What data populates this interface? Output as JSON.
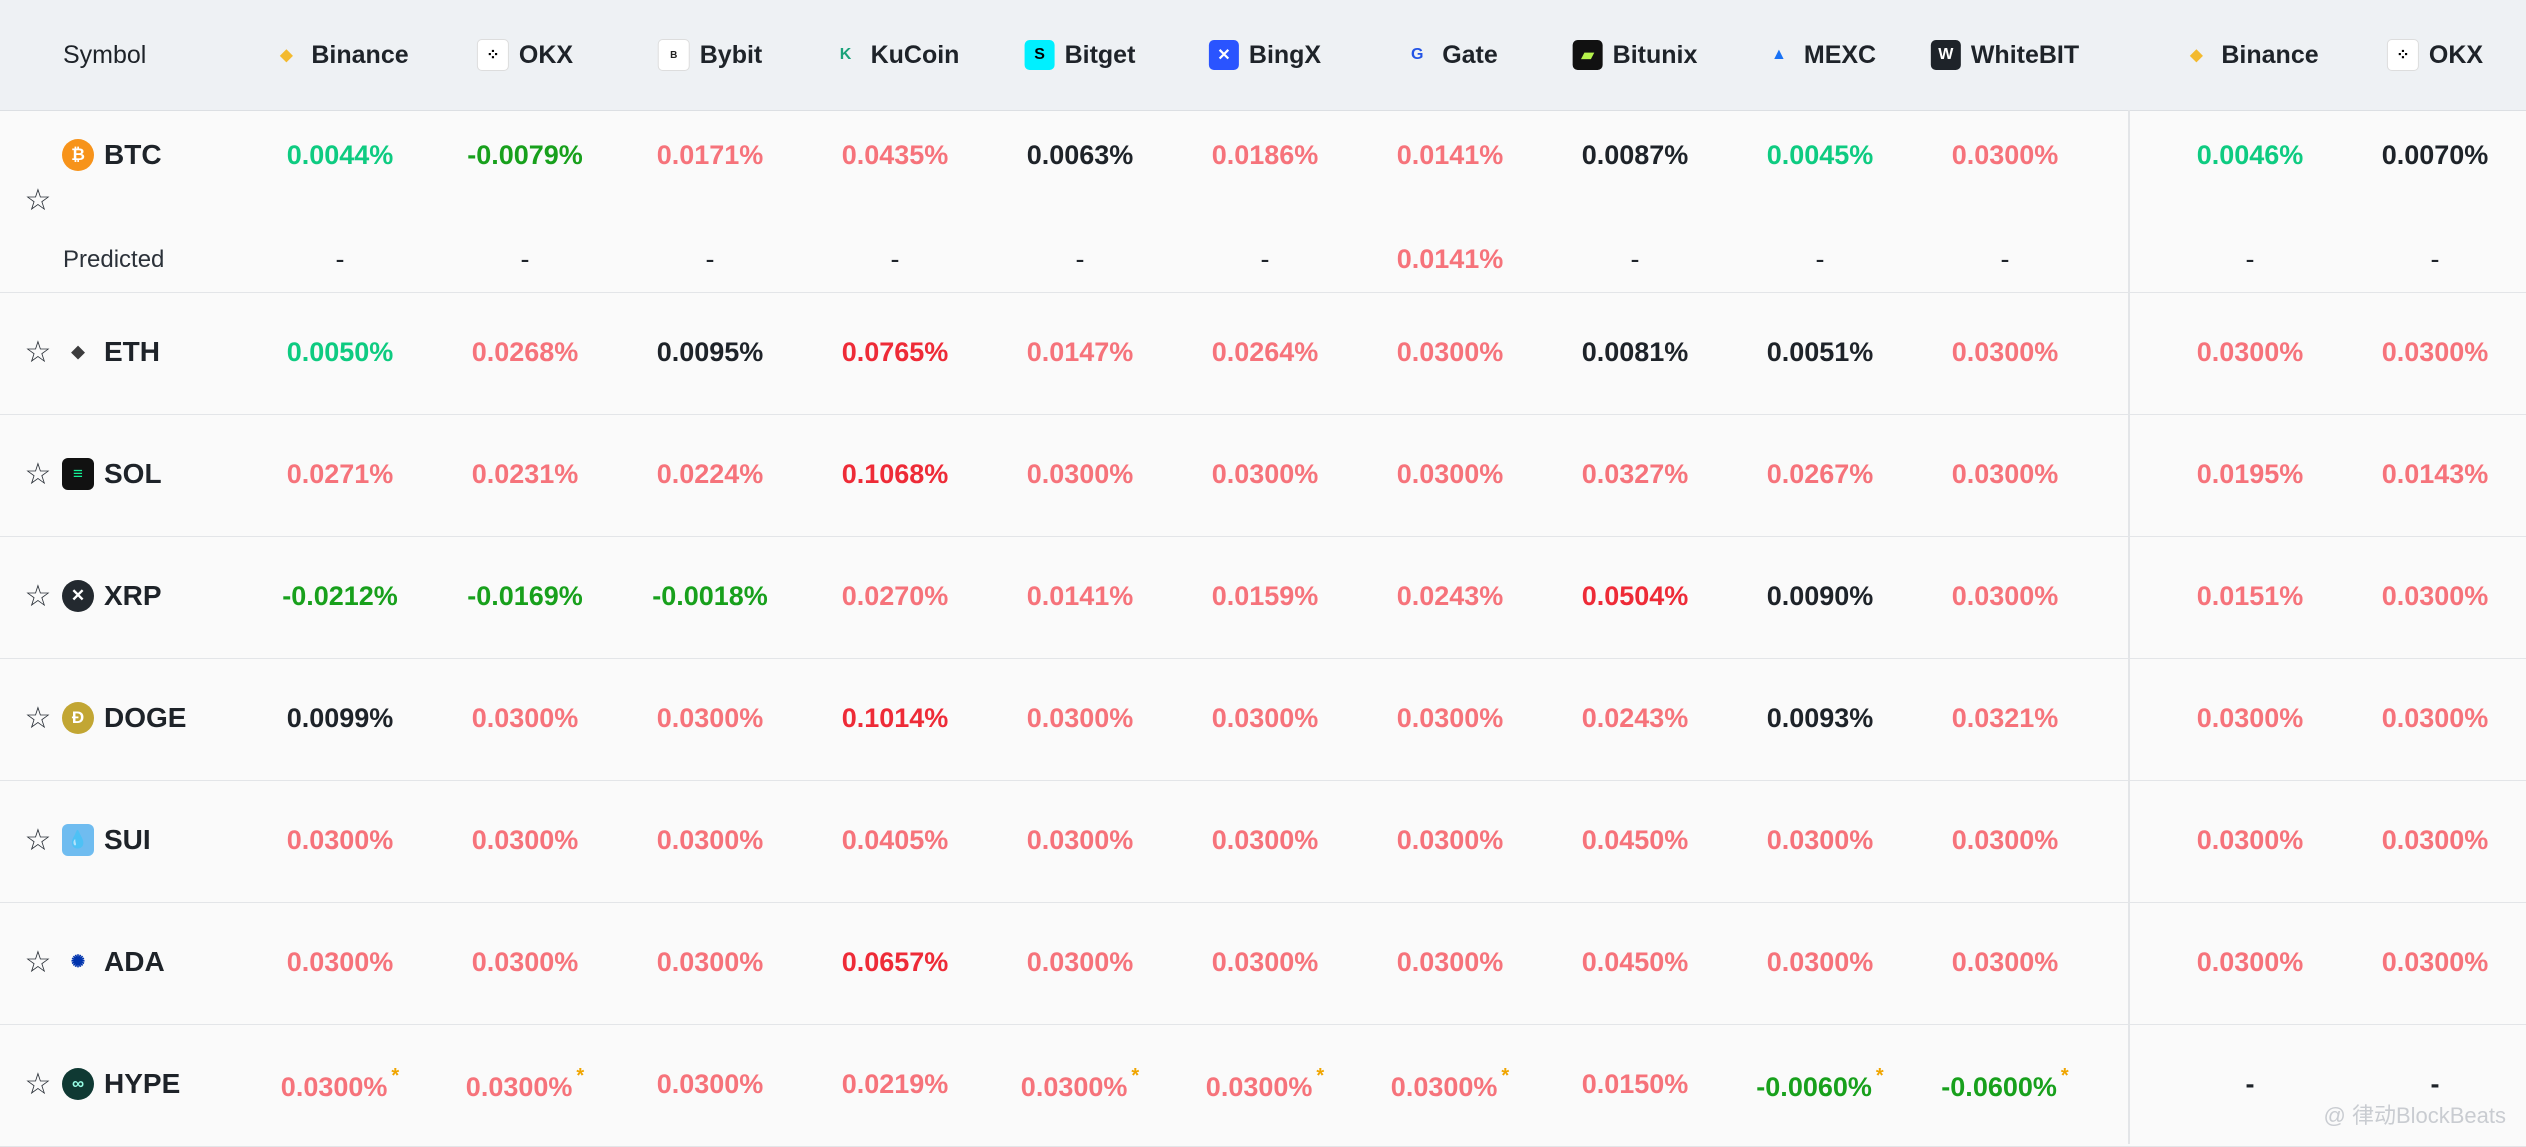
{
  "header": {
    "symbol_label": "Symbol",
    "exchanges": [
      {
        "name": "Binance",
        "icon": "binance-icon",
        "color": "#f3ba2f"
      },
      {
        "name": "OKX",
        "icon": "okx-icon",
        "color": "#000000"
      },
      {
        "name": "Bybit",
        "icon": "bybit-icon",
        "color": "#222222"
      },
      {
        "name": "KuCoin",
        "icon": "kucoin-icon",
        "color": "#1ba27a"
      },
      {
        "name": "Bitget",
        "icon": "bitget-icon",
        "color": "#00f0ff"
      },
      {
        "name": "BingX",
        "icon": "bingx-icon",
        "color": "#2a54ff"
      },
      {
        "name": "Gate",
        "icon": "gate-icon",
        "color": "#2354e6"
      },
      {
        "name": "Bitunix",
        "icon": "bitunix-icon",
        "color": "#b5f24c"
      },
      {
        "name": "MEXC",
        "icon": "mexc-icon",
        "color": "#1972f5"
      },
      {
        "name": "WhiteBIT",
        "icon": "whitebit-icon",
        "color": "#1e2329"
      },
      {
        "name": "Binance",
        "icon": "binance-icon",
        "color": "#f3ba2f"
      },
      {
        "name": "OKX",
        "icon": "okx-icon",
        "color": "#000000"
      }
    ]
  },
  "colors": {
    "positive": "#f6737b",
    "strong_positive": "#ee2b37",
    "green": "#0ecb81",
    "dark_green": "#18a01c",
    "neutral": "#1e2329"
  },
  "rows": [
    {
      "symbol": "BTC",
      "icon": "bitcoin-icon",
      "values": [
        {
          "v": "0.0044%",
          "c": "grn"
        },
        {
          "v": "-0.0079%",
          "c": "dkgrn"
        },
        {
          "v": "0.0171%",
          "c": "pos"
        },
        {
          "v": "0.0435%",
          "c": "pos"
        },
        {
          "v": "0.0063%",
          "c": "neu"
        },
        {
          "v": "0.0186%",
          "c": "pos"
        },
        {
          "v": "0.0141%",
          "c": "pos"
        },
        {
          "v": "0.0087%",
          "c": "neu"
        },
        {
          "v": "0.0045%",
          "c": "grn"
        },
        {
          "v": "0.0300%",
          "c": "pos"
        },
        {
          "v": "0.0046%",
          "c": "grn"
        },
        {
          "v": "0.0070%",
          "c": "neu"
        }
      ],
      "predicted_label": "Predicted",
      "predicted": [
        {
          "v": "-",
          "c": "neu"
        },
        {
          "v": "-",
          "c": "neu"
        },
        {
          "v": "-",
          "c": "neu"
        },
        {
          "v": "-",
          "c": "neu"
        },
        {
          "v": "-",
          "c": "neu"
        },
        {
          "v": "-",
          "c": "neu"
        },
        {
          "v": "0.0141%",
          "c": "pos"
        },
        {
          "v": "-",
          "c": "neu"
        },
        {
          "v": "-",
          "c": "neu"
        },
        {
          "v": "-",
          "c": "neu"
        },
        {
          "v": "-",
          "c": "neu"
        },
        {
          "v": "-",
          "c": "neu"
        }
      ]
    },
    {
      "symbol": "ETH",
      "icon": "ethereum-icon",
      "values": [
        {
          "v": "0.0050%",
          "c": "grn"
        },
        {
          "v": "0.0268%",
          "c": "pos"
        },
        {
          "v": "0.0095%",
          "c": "neu"
        },
        {
          "v": "0.0765%",
          "c": "strong"
        },
        {
          "v": "0.0147%",
          "c": "pos"
        },
        {
          "v": "0.0264%",
          "c": "pos"
        },
        {
          "v": "0.0300%",
          "c": "pos"
        },
        {
          "v": "0.0081%",
          "c": "neu"
        },
        {
          "v": "0.0051%",
          "c": "neu"
        },
        {
          "v": "0.0300%",
          "c": "pos"
        },
        {
          "v": "0.0300%",
          "c": "pos"
        },
        {
          "v": "0.0300%",
          "c": "pos"
        }
      ]
    },
    {
      "symbol": "SOL",
      "icon": "solana-icon",
      "values": [
        {
          "v": "0.0271%",
          "c": "pos"
        },
        {
          "v": "0.0231%",
          "c": "pos"
        },
        {
          "v": "0.0224%",
          "c": "pos"
        },
        {
          "v": "0.1068%",
          "c": "strong"
        },
        {
          "v": "0.0300%",
          "c": "pos"
        },
        {
          "v": "0.0300%",
          "c": "pos"
        },
        {
          "v": "0.0300%",
          "c": "pos"
        },
        {
          "v": "0.0327%",
          "c": "pos"
        },
        {
          "v": "0.0267%",
          "c": "pos"
        },
        {
          "v": "0.0300%",
          "c": "pos"
        },
        {
          "v": "0.0195%",
          "c": "pos"
        },
        {
          "v": "0.0143%",
          "c": "pos"
        }
      ]
    },
    {
      "symbol": "XRP",
      "icon": "xrp-icon",
      "values": [
        {
          "v": "-0.0212%",
          "c": "dkgrn"
        },
        {
          "v": "-0.0169%",
          "c": "dkgrn"
        },
        {
          "v": "-0.0018%",
          "c": "dkgrn"
        },
        {
          "v": "0.0270%",
          "c": "pos"
        },
        {
          "v": "0.0141%",
          "c": "pos"
        },
        {
          "v": "0.0159%",
          "c": "pos"
        },
        {
          "v": "0.0243%",
          "c": "pos"
        },
        {
          "v": "0.0504%",
          "c": "strong"
        },
        {
          "v": "0.0090%",
          "c": "neu"
        },
        {
          "v": "0.0300%",
          "c": "pos"
        },
        {
          "v": "0.0151%",
          "c": "pos"
        },
        {
          "v": "0.0300%",
          "c": "pos"
        }
      ]
    },
    {
      "symbol": "DOGE",
      "icon": "dogecoin-icon",
      "values": [
        {
          "v": "0.0099%",
          "c": "neu"
        },
        {
          "v": "0.0300%",
          "c": "pos"
        },
        {
          "v": "0.0300%",
          "c": "pos"
        },
        {
          "v": "0.1014%",
          "c": "strong"
        },
        {
          "v": "0.0300%",
          "c": "pos"
        },
        {
          "v": "0.0300%",
          "c": "pos"
        },
        {
          "v": "0.0300%",
          "c": "pos"
        },
        {
          "v": "0.0243%",
          "c": "pos"
        },
        {
          "v": "0.0093%",
          "c": "neu"
        },
        {
          "v": "0.0321%",
          "c": "pos"
        },
        {
          "v": "0.0300%",
          "c": "pos"
        },
        {
          "v": "0.0300%",
          "c": "pos"
        }
      ]
    },
    {
      "symbol": "SUI",
      "icon": "sui-icon",
      "values": [
        {
          "v": "0.0300%",
          "c": "pos"
        },
        {
          "v": "0.0300%",
          "c": "pos"
        },
        {
          "v": "0.0300%",
          "c": "pos"
        },
        {
          "v": "0.0405%",
          "c": "pos"
        },
        {
          "v": "0.0300%",
          "c": "pos"
        },
        {
          "v": "0.0300%",
          "c": "pos"
        },
        {
          "v": "0.0300%",
          "c": "pos"
        },
        {
          "v": "0.0450%",
          "c": "pos"
        },
        {
          "v": "0.0300%",
          "c": "pos"
        },
        {
          "v": "0.0300%",
          "c": "pos"
        },
        {
          "v": "0.0300%",
          "c": "pos"
        },
        {
          "v": "0.0300%",
          "c": "pos"
        }
      ]
    },
    {
      "symbol": "ADA",
      "icon": "cardano-icon",
      "values": [
        {
          "v": "0.0300%",
          "c": "pos"
        },
        {
          "v": "0.0300%",
          "c": "pos"
        },
        {
          "v": "0.0300%",
          "c": "pos"
        },
        {
          "v": "0.0657%",
          "c": "strong"
        },
        {
          "v": "0.0300%",
          "c": "pos"
        },
        {
          "v": "0.0300%",
          "c": "pos"
        },
        {
          "v": "0.0300%",
          "c": "pos"
        },
        {
          "v": "0.0450%",
          "c": "pos"
        },
        {
          "v": "0.0300%",
          "c": "pos"
        },
        {
          "v": "0.0300%",
          "c": "pos"
        },
        {
          "v": "0.0300%",
          "c": "pos"
        },
        {
          "v": "0.0300%",
          "c": "pos"
        }
      ]
    },
    {
      "symbol": "HYPE",
      "icon": "hyperliquid-icon",
      "values": [
        {
          "v": "0.0300%",
          "c": "pos",
          "star": "*"
        },
        {
          "v": "0.0300%",
          "c": "pos",
          "star": "*"
        },
        {
          "v": "0.0300%",
          "c": "pos"
        },
        {
          "v": "0.0219%",
          "c": "pos"
        },
        {
          "v": "0.0300%",
          "c": "pos",
          "star": "*"
        },
        {
          "v": "0.0300%",
          "c": "pos",
          "star": "*"
        },
        {
          "v": "0.0300%",
          "c": "pos",
          "star": "*"
        },
        {
          "v": "0.0150%",
          "c": "pos"
        },
        {
          "v": "-0.0060%",
          "c": "dkgrn",
          "star": "*"
        },
        {
          "v": "-0.0600%",
          "c": "dkgrn",
          "star": "*"
        },
        {
          "v": "-",
          "c": "neu"
        },
        {
          "v": "-",
          "c": "neu"
        }
      ]
    }
  ],
  "watermark": "@ 律动BlockBeats"
}
